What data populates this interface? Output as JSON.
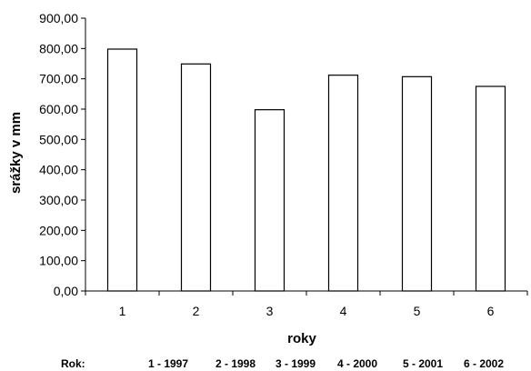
{
  "chart_data": {
    "type": "bar",
    "categories": [
      "1",
      "2",
      "3",
      "4",
      "5",
      "6"
    ],
    "values": [
      798,
      749,
      598,
      712,
      707,
      675
    ],
    "title": "",
    "xlabel": "roky",
    "ylabel": "srážky v mm",
    "ylim": [
      0,
      900
    ],
    "yticks": [
      "0,00",
      "100,00",
      "200,00",
      "300,00",
      "400,00",
      "500,00",
      "600,00",
      "700,00",
      "800,00",
      "900,00"
    ],
    "grid": false,
    "legend": "none",
    "bar_fill": "#ffffff",
    "bar_stroke": "#000000"
  },
  "footer": {
    "label": "Rok:",
    "items": [
      "1  - 1997",
      "2 - 1998",
      "3 - 1999",
      "4 - 2000",
      "5 - 2001",
      "6 - 2002"
    ]
  }
}
